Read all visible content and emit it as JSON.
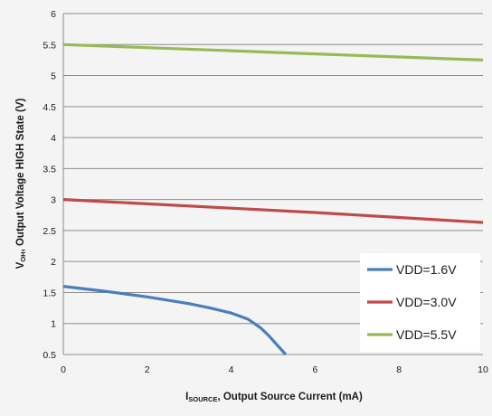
{
  "chart_data": {
    "type": "line",
    "title": "",
    "xlabel": {
      "symbol": "I",
      "subscript": "SOURCE",
      "text": ", Output Source Current (mA)"
    },
    "ylabel": {
      "symbol": "V",
      "subscript": "OH",
      "text": ", Output Voltage HIGH State (V)"
    },
    "xlim": [
      0,
      10
    ],
    "ylim": [
      0.5,
      6
    ],
    "xticks": [
      0,
      2,
      4,
      6,
      8,
      10
    ],
    "yticks": [
      0.5,
      1,
      1.5,
      2,
      2.5,
      3,
      3.5,
      4,
      4.5,
      5,
      5.5,
      6
    ],
    "ytick_labels": [
      "0.5",
      "1",
      "1.5",
      "2",
      "2.5",
      "3",
      "3.5",
      "4",
      "4.5",
      "5",
      "5.5",
      "6"
    ],
    "grid": "horizontal",
    "legend_position": "bottom-right",
    "series": [
      {
        "name": "VDD=1.6V",
        "color": "#4a7ebb",
        "x": [
          0,
          1,
          2,
          3,
          3.5,
          4,
          4.4,
          4.7,
          4.9,
          5.1,
          5.3
        ],
        "y": [
          1.6,
          1.52,
          1.43,
          1.32,
          1.25,
          1.17,
          1.07,
          0.93,
          0.8,
          0.65,
          0.5
        ]
      },
      {
        "name": "VDD=3.0V",
        "color": "#be4b48",
        "x": [
          0,
          2,
          4,
          6,
          8,
          10
        ],
        "y": [
          3.0,
          2.93,
          2.86,
          2.79,
          2.71,
          2.63
        ]
      },
      {
        "name": "VDD=5.5V",
        "color": "#98b954",
        "x": [
          0,
          2,
          4,
          6,
          8,
          10
        ],
        "y": [
          5.5,
          5.45,
          5.4,
          5.35,
          5.3,
          5.25
        ]
      }
    ]
  }
}
